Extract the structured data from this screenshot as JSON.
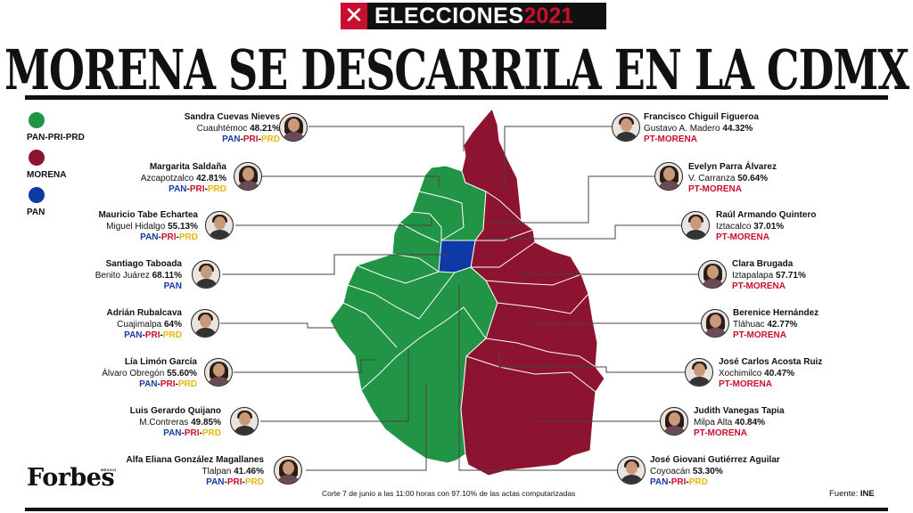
{
  "banner": {
    "mark": "✕",
    "word": "ELECCIONES",
    "year": "2021"
  },
  "headline": "MORENA SE DESCARRILA EN LA CDMX",
  "colors": {
    "pan_pri_prd": "#229446",
    "morena": "#8c1430",
    "pan": "#0e3aa6",
    "blue_text": "#1a3aa0",
    "red_text": "#c8102e",
    "yellow_text": "#e7b70c"
  },
  "legend": [
    {
      "label": "PAN-PRI-PRD",
      "color": "#229446"
    },
    {
      "label": "MORENA",
      "color": "#8c1430"
    },
    {
      "label": "PAN",
      "color": "#0e3aa6"
    }
  ],
  "left_candidates": [
    {
      "name": "Sandra Cuevas Nieves",
      "district": "Cuauhtémoc",
      "pct": "48.21%",
      "alliance": "PAN-PRI-PRD"
    },
    {
      "name": "Margarita Saldaña",
      "district": "Azcapotzalco",
      "pct": "42.81%",
      "alliance": "PAN-PRI-PRD"
    },
    {
      "name": "Mauricio Tabe Echartea",
      "district": "Miguel Hidalgo",
      "pct": "55.13%",
      "alliance": "PAN-PRI-PRD"
    },
    {
      "name": "Santiago Taboada",
      "district": "Benito Juárez",
      "pct": "68.11%",
      "alliance": "PAN"
    },
    {
      "name": "Adrián Rubalcava",
      "district": "Cuajimalpa",
      "pct": "64%",
      "alliance": "PAN-PRI-PRD"
    },
    {
      "name": "Lía Limón García",
      "district": "Álvaro Obregón",
      "pct": "55.60%",
      "alliance": "PAN-PRI-PRD"
    },
    {
      "name": "Luis Gerardo Quijano",
      "district": "M.Contreras",
      "pct": "49.85%",
      "alliance": "PAN-PRI-PRD"
    },
    {
      "name": "Alfa Eliana González Magallanes",
      "district": "Tlalpan",
      "pct": "41.46%",
      "alliance": "PAN-PRI-PRD"
    }
  ],
  "right_candidates": [
    {
      "name": "Francisco Chiguil Figueroa",
      "district": "Gustavo A. Madero",
      "pct": "44.32%",
      "alliance": "PT-MORENA"
    },
    {
      "name": "Evelyn Parra Álvarez",
      "district": "V. Carranza",
      "pct": "50.64%",
      "alliance": "PT-MORENA"
    },
    {
      "name": "Raúl Armando Quintero",
      "district": "Iztacalco",
      "pct": "37.01%",
      "alliance": "PT-MORENA"
    },
    {
      "name": "Clara Brugada",
      "district": "Iztapalapa",
      "pct": "57.71%",
      "alliance": "PT-MORENA"
    },
    {
      "name": "Berenice Hernández",
      "district": "Tláhuac",
      "pct": "42.77%",
      "alliance": "PT-MORENA"
    },
    {
      "name": "José Carlos Acosta Ruiz",
      "district": "Xochimilco",
      "pct": "40.47%",
      "alliance": "PT-MORENA"
    },
    {
      "name": "Judith Vanegas Tapia",
      "district": "Milpa Alta",
      "pct": "40.84%",
      "alliance": "PT-MORENA"
    },
    {
      "name": "José Giovani Gutiérrez Aguilar",
      "district": "Coyoacán",
      "pct": "53.30%",
      "alliance": "PAN-PRI-PRD"
    }
  ],
  "brand": {
    "name": "Forbes",
    "edition": "MÉXICO"
  },
  "note": "Corte 7 de junio a las 11:00 horas con 97.10% de las actas computarizadas",
  "source": {
    "prefix": "Fuente: ",
    "name": "INE"
  }
}
